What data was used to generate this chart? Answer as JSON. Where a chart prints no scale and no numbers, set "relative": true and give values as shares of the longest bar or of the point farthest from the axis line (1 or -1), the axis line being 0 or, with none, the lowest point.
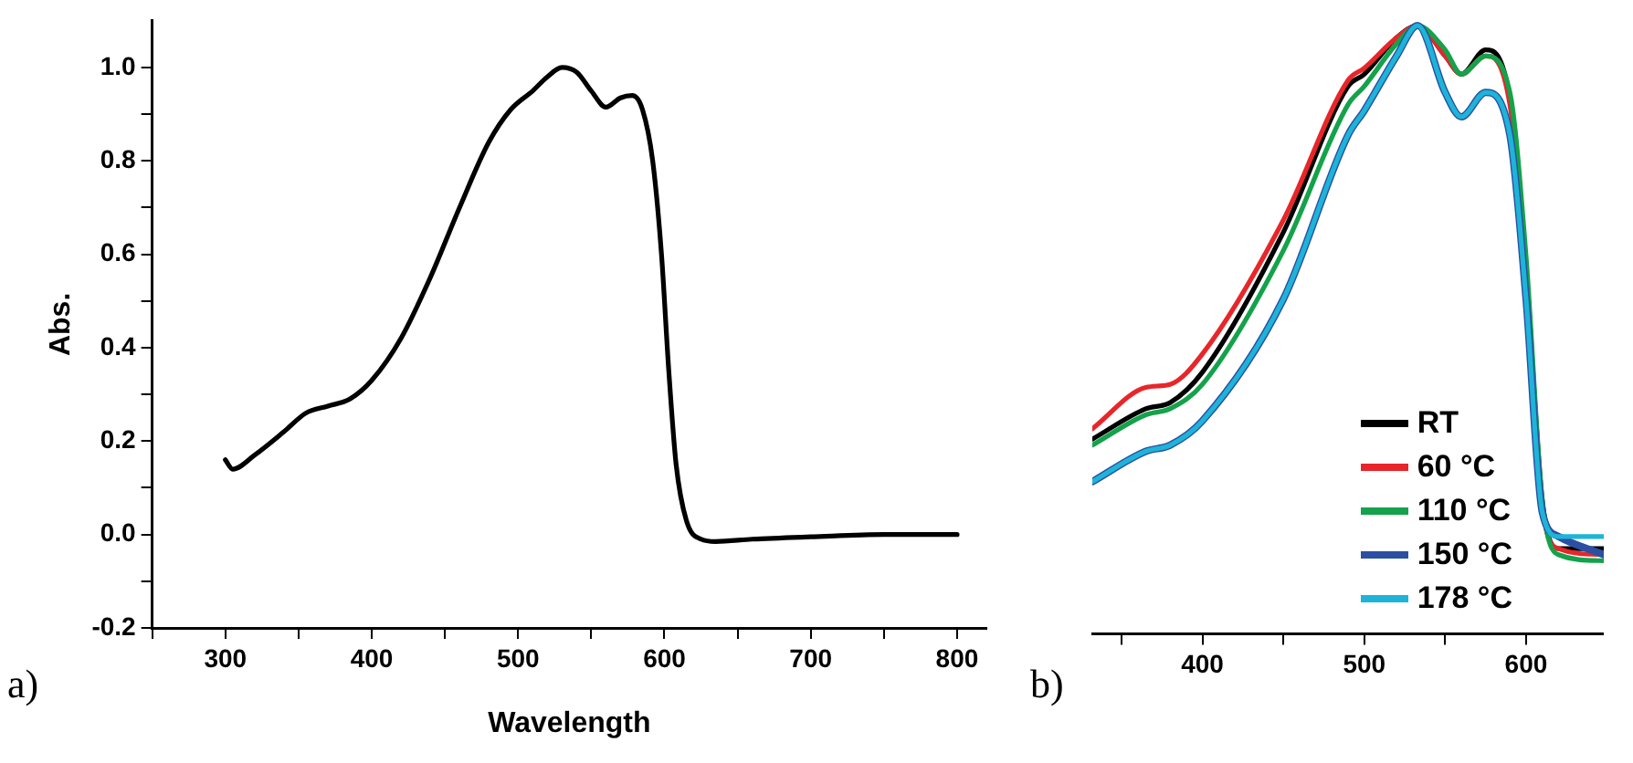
{
  "chart_data": [
    {
      "type": "line",
      "xlabel": "Wavelength",
      "ylabel": "Abs.",
      "annotations": [
        "a)"
      ],
      "xlim": [
        250,
        820
      ],
      "ylim": [
        -0.2,
        1.1
      ],
      "xticks": [
        {
          "value": 250,
          "label": null
        },
        300,
        {
          "value": 350,
          "label": null
        },
        400,
        {
          "value": 450,
          "label": null
        },
        500,
        {
          "value": 550,
          "label": null
        },
        600,
        {
          "value": 650,
          "label": null
        },
        700,
        {
          "value": 750,
          "label": null
        },
        800
      ],
      "yticks": [
        "-0.2",
        {
          "value": -0.1,
          "label": null
        },
        {
          "value": 0,
          "label": "0.0"
        },
        {
          "value": 0.1,
          "label": null
        },
        0.2,
        {
          "value": 0.3,
          "label": null
        },
        0.4,
        {
          "value": 0.5,
          "label": null
        },
        0.6,
        {
          "value": 0.7,
          "label": null
        },
        0.8,
        {
          "value": 0.9,
          "label": null
        },
        {
          "value": 1,
          "label": "1.0"
        }
      ],
      "grid": false,
      "legend": false,
      "line_style": "solid",
      "marker": "none",
      "series": [
        {
          "color": "#000000",
          "x": [
            300,
            305,
            320,
            340,
            355,
            370,
            385,
            400,
            420,
            440,
            460,
            480,
            495,
            510,
            520,
            530,
            540,
            550,
            560,
            570,
            578,
            585,
            592,
            598,
            603,
            608,
            615,
            625,
            635,
            660,
            700,
            750,
            800
          ],
          "values": [
            0.16,
            0.14,
            0.17,
            0.22,
            0.26,
            0.275,
            0.29,
            0.33,
            0.42,
            0.55,
            0.7,
            0.84,
            0.91,
            0.95,
            0.98,
            1.0,
            0.99,
            0.95,
            0.915,
            0.935,
            0.94,
            0.91,
            0.8,
            0.6,
            0.35,
            0.15,
            0.03,
            -0.01,
            -0.015,
            -0.01,
            -0.005,
            0,
            0
          ]
        }
      ]
    },
    {
      "type": "line",
      "relative": true,
      "annotations": [
        "b)"
      ],
      "xlim": [
        332,
        648
      ],
      "xticks": [
        {
          "value": 350,
          "label": null
        },
        400,
        {
          "value": 450,
          "label": null
        },
        500,
        {
          "value": 550,
          "label": null
        },
        600
      ],
      "tick_labels": "x",
      "grid": false,
      "legend": "right",
      "line_style": "solid",
      "marker": "none",
      "x": [
        332,
        365,
        380,
        400,
        450,
        490,
        500,
        520,
        533,
        550,
        560,
        575,
        590,
        600,
        610,
        620,
        648
      ],
      "series": [
        {
          "name": "RT",
          "color": "#000000",
          "values": [
            0.32,
            0.37,
            0.38,
            0.43,
            0.66,
            0.9,
            0.92,
            0.98,
            1,
            0.95,
            0.92,
            0.96,
            0.88,
            0.6,
            0.22,
            0.14,
            0.14
          ]
        },
        {
          "name": "60 °C",
          "color": "#e8262a",
          "values": [
            0.337,
            0.405,
            0.41,
            0.46,
            0.68,
            0.91,
            0.93,
            0.98,
            1,
            0.95,
            0.92,
            0.95,
            0.87,
            0.58,
            0.21,
            0.14,
            0.13
          ]
        },
        {
          "name": "110 °C",
          "color": "#14a24a",
          "values": [
            0.31,
            0.36,
            0.37,
            0.41,
            0.63,
            0.87,
            0.9,
            0.97,
            1,
            0.96,
            0.92,
            0.95,
            0.89,
            0.62,
            0.22,
            0.13,
            0.12
          ]
        },
        {
          "name": "150 °C",
          "color": "#2b4fa3",
          "values": [
            0.25,
            0.3,
            0.31,
            0.35,
            0.55,
            0.82,
            0.86,
            0.95,
            1,
            0.89,
            0.85,
            0.89,
            0.82,
            0.55,
            0.2,
            0.16,
            0.13
          ]
        },
        {
          "name": "178 °C",
          "color": "#1db4d8",
          "values": [
            0.25,
            0.3,
            0.31,
            0.35,
            0.55,
            0.82,
            0.86,
            0.95,
            1,
            0.89,
            0.85,
            0.89,
            0.82,
            0.55,
            0.2,
            0.16,
            0.16
          ]
        }
      ]
    }
  ]
}
